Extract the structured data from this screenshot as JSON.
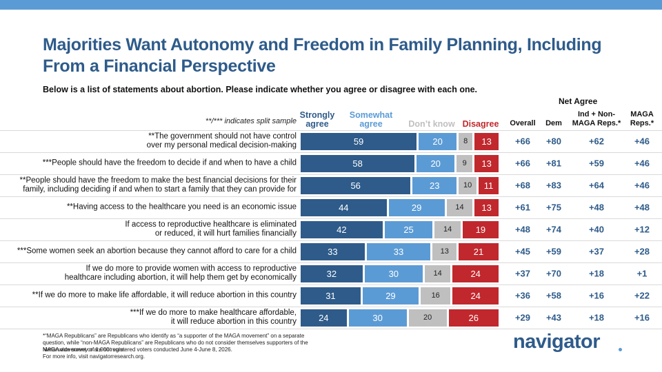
{
  "chart_data": {
    "type": "stacked-bar",
    "title": "Majorities Want Autonomy and Freedom in Family Planning, Including From a Financial Perspective",
    "subtitle": "Below is a list of statements about abortion. Please indicate whether you agree or disagree with each one.",
    "note": "**/*** indicates split sample",
    "categories": [
      "**The government should not have control\nover my personal medical decision-making",
      "***People should have the freedom to decide if and when to have a child",
      "**People should have the freedom to make the best financial decisions for their\nfamily, including deciding if and when to start a family that they can provide for",
      "**Having access to the healthcare you need is an economic issue",
      "If access to reproductive healthcare is eliminated\nor reduced, it will hurt families financially",
      "***Some women seek an abortion because they cannot afford to care for a child",
      "If we do more to provide women with access to reproductive\nhealthcare including abortion, it will help them get by economically",
      "**If we do more to make life affordable, it will reduce abortion in this country",
      "***If we do more to make healthcare affordable,\nit will reduce abortion in this country"
    ],
    "series": [
      {
        "name": "Strongly agree",
        "color": "#2e5b8a",
        "values": [
          59,
          58,
          56,
          44,
          42,
          33,
          32,
          31,
          24
        ]
      },
      {
        "name": "Somewhat agree",
        "color": "#5b9bd5",
        "values": [
          20,
          20,
          23,
          29,
          25,
          33,
          30,
          29,
          30
        ]
      },
      {
        "name": "Don’t know",
        "color": "#bfbfbf",
        "values": [
          8,
          9,
          10,
          14,
          14,
          13,
          14,
          16,
          20
        ]
      },
      {
        "name": "Disagree",
        "color": "#c0282d",
        "values": [
          13,
          13,
          11,
          13,
          19,
          21,
          24,
          24,
          26
        ]
      }
    ],
    "net_agree": {
      "title": "Net Agree",
      "columns": [
        {
          "name": "Overall",
          "values": [
            "+66",
            "+66",
            "+68",
            "+61",
            "+48",
            "+45",
            "+37",
            "+36",
            "+29"
          ]
        },
        {
          "name": "Dem",
          "values": [
            "+80",
            "+81",
            "+83",
            "+75",
            "+74",
            "+59",
            "+70",
            "+58",
            "+43"
          ]
        },
        {
          "name": "Ind + Non-\nMAGA Reps.*",
          "values": [
            "+62",
            "+59",
            "+64",
            "+48",
            "+40",
            "+37",
            "+18",
            "+16",
            "+18"
          ]
        },
        {
          "name": "MAGA\nReps.*",
          "values": [
            "+46",
            "+46",
            "+46",
            "+48",
            "+12",
            "+28",
            "+1",
            "+22",
            "+16"
          ]
        }
      ]
    },
    "footnotes": [
      "*“MAGA Republicans” are Republicans who identify as “a supporter of the MAGA movement” on a separate question, while “non-MAGA Republicans” are Republicans who do not consider themselves supporters of the MAGA movement or are not sure.",
      "Nationwide survey of 1,000 registered voters conducted June 4-June 8, 2026.",
      "For more info, visit navigatorresearch.org."
    ],
    "logo": "navigator"
  }
}
